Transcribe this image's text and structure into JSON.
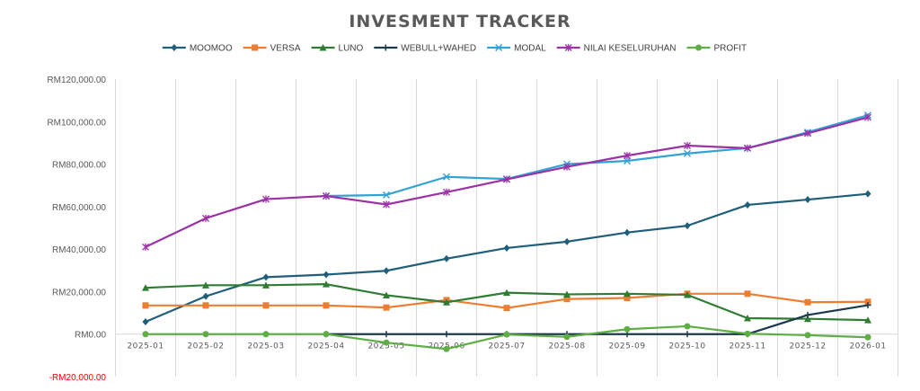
{
  "chart_data": {
    "type": "line",
    "title": "INVESMENT TRACKER",
    "categories": [
      "2025-01",
      "2025-02",
      "2025-03",
      "2025-04",
      "2025-05",
      "2025-06",
      "2025-07",
      "2025-08",
      "2025-09",
      "2025-10",
      "2025-11",
      "2025-12",
      "2026-01"
    ],
    "y_ticks": [
      {
        "value": 120000,
        "label": "RM120,000.00"
      },
      {
        "value": 100000,
        "label": "RM100,000.00"
      },
      {
        "value": 80000,
        "label": "RM80,000.00"
      },
      {
        "value": 60000,
        "label": "RM60,000.00"
      },
      {
        "value": 40000,
        "label": "RM40,000.00"
      },
      {
        "value": 20000,
        "label": "RM20,000.00"
      },
      {
        "value": 0,
        "label": "RM0.00"
      },
      {
        "value": -20000,
        "label": "-RM20,000.00"
      }
    ],
    "ylim": [
      -20000,
      120000
    ],
    "grid": "vertical",
    "legend_position": "top",
    "series": [
      {
        "name": "MOOMOO",
        "color": "#1f5f7a",
        "marker": "diamond",
        "values": [
          5800,
          17800,
          26800,
          28000,
          29800,
          35500,
          40500,
          43500,
          47800,
          51000,
          60800,
          63300,
          66000
        ]
      },
      {
        "name": "VERSA",
        "color": "#ed7d31",
        "marker": "square",
        "values": [
          13500,
          13500,
          13500,
          13500,
          12500,
          16000,
          12300,
          16500,
          17000,
          19000,
          19000,
          15000,
          15200
        ]
      },
      {
        "name": "LUNO",
        "color": "#2e7d32",
        "marker": "triangle",
        "values": [
          21800,
          23000,
          23000,
          23500,
          18300,
          15000,
          19500,
          18700,
          19000,
          18500,
          7500,
          7200,
          6600
        ]
      },
      {
        "name": "WEBULL+WAHED",
        "color": "#1b3a4b",
        "marker": "plus",
        "values": [
          null,
          null,
          null,
          0,
          0,
          0,
          0,
          0,
          0,
          0,
          0,
          9000,
          13600
        ]
      },
      {
        "name": "MODAL",
        "color": "#35a2d6",
        "marker": "x",
        "values": [
          null,
          null,
          null,
          65000,
          65500,
          74000,
          73000,
          80000,
          81500,
          85000,
          87500,
          95000,
          103000
        ]
      },
      {
        "name": "NILAI KESELURUHAN",
        "color": "#9b32a6",
        "marker": "star",
        "values": [
          41000,
          54500,
          63500,
          65000,
          61000,
          66800,
          72800,
          78700,
          84000,
          88700,
          87500,
          94500,
          102000
        ]
      },
      {
        "name": "PROFIT",
        "color": "#5fae45",
        "marker": "circle",
        "values": [
          0,
          0,
          0,
          0,
          -4000,
          -7000,
          -200,
          -1300,
          2300,
          3700,
          200,
          -500,
          -1500
        ]
      }
    ]
  }
}
